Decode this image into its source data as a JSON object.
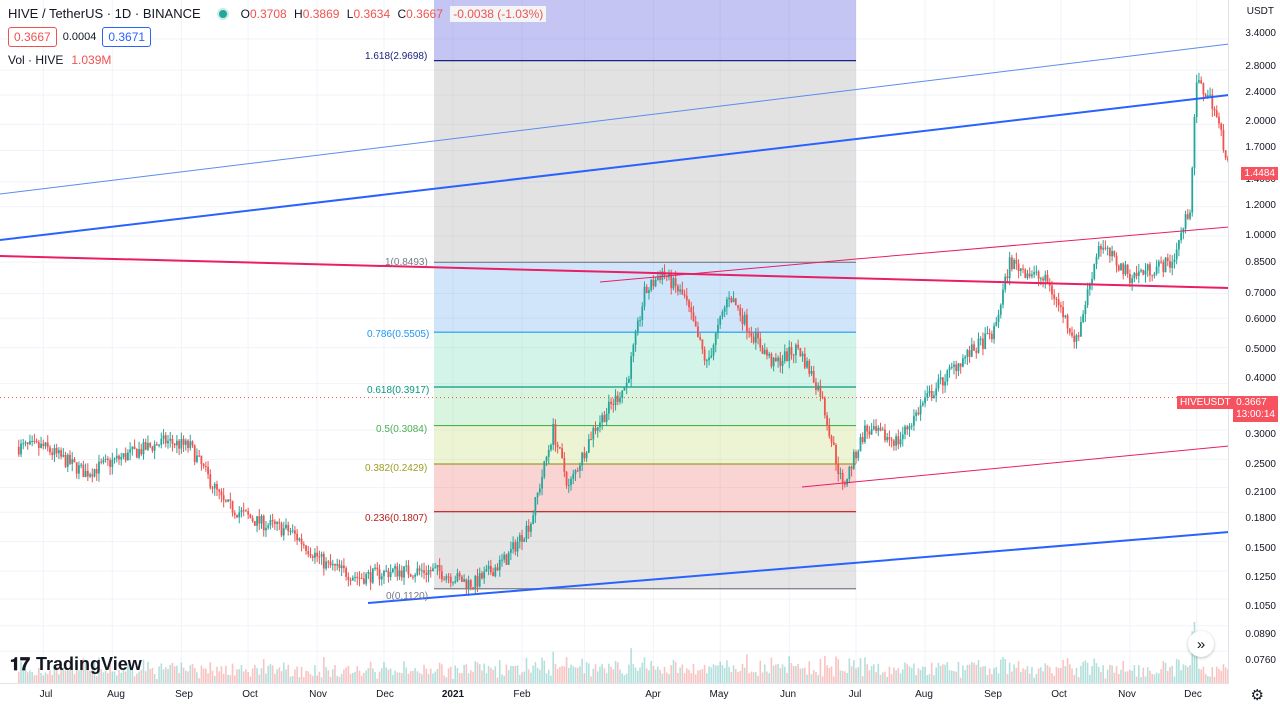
{
  "header": {
    "title": "HIVE / TetherUS · 1D · BINANCE",
    "ohlc": {
      "o_label": "O",
      "o": "0.3708",
      "h_label": "H",
      "h": "0.3869",
      "l_label": "L",
      "l": "0.3634",
      "c_label": "C",
      "c": "0.3667",
      "change": "-0.0038 (-1.03%)"
    },
    "bid": "0.3667",
    "spread": "0.0004",
    "ask": "0.3671",
    "volume_label": "Vol · HIVE",
    "volume_value": "1.039M"
  },
  "price_axis": {
    "currency": "USDT",
    "ticks": [
      "3.4000",
      "2.8000",
      "2.4000",
      "2.0000",
      "1.7000",
      "1.4000",
      "1.2000",
      "1.0000",
      "0.8500",
      "0.7000",
      "0.6000",
      "0.5000",
      "0.4000",
      "0.3000",
      "0.2500",
      "0.2100",
      "0.1800",
      "0.1500",
      "0.1250",
      "0.1050",
      "0.0890",
      "0.0760"
    ],
    "last_price_badge": "1.4484",
    "symbol_tag": "HIVEUSDT",
    "current_price_badge": "0.3667",
    "countdown": "13:00:14"
  },
  "time_axis": {
    "ticks": [
      "Jul",
      "Aug",
      "Sep",
      "Oct",
      "Nov",
      "Dec",
      "2021",
      "Feb",
      "Apr",
      "May",
      "Jun",
      "Jul",
      "Aug",
      "Sep",
      "Oct",
      "Nov",
      "Dec"
    ]
  },
  "fib_levels": [
    {
      "label": "1.618(2.9698)",
      "color": "#1a237e"
    },
    {
      "label": "1(0.8493)",
      "color": "#787b86"
    },
    {
      "label": "0.786(0.5505)",
      "color": "#2196f3"
    },
    {
      "label": "0.618(0.3917)",
      "color": "#089981"
    },
    {
      "label": "0.5(0.3084)",
      "color": "#4caf50"
    },
    {
      "label": "0.382(0.2429)",
      "color": "#9e9d24"
    },
    {
      "label": "0.236(0.1807)",
      "color": "#b71c1c"
    },
    {
      "label": "0(0.1120)",
      "color": "#787b86"
    }
  ],
  "branding": {
    "logo_text": "TradingView"
  },
  "colors": {
    "up": "#26a69a",
    "down": "#ef5350",
    "trend_blue": "#2962ff",
    "trend_red": "#e91e63"
  },
  "chart_data": {
    "type": "candlestick",
    "title": "HIVE / TetherUS · 1D · BINANCE",
    "y_scale": "log",
    "ylim": [
      0.07,
      3.6
    ],
    "x_range": [
      "2020-06-20",
      "2021-12-20"
    ],
    "series": [
      {
        "name": "HIVE / TetherUS",
        "closes_approx": [
          [
            "2020-07-01",
            0.27
          ],
          [
            "2020-07-20",
            0.23
          ],
          [
            "2020-08-10",
            0.26
          ],
          [
            "2020-08-25",
            0.28
          ],
          [
            "2020-09-05",
            0.27
          ],
          [
            "2020-09-20",
            0.19
          ],
          [
            "2020-10-05",
            0.17
          ],
          [
            "2020-10-20",
            0.16
          ],
          [
            "2020-11-05",
            0.13
          ],
          [
            "2020-11-20",
            0.12
          ],
          [
            "2020-12-05",
            0.125
          ],
          [
            "2020-12-25",
            0.125
          ],
          [
            "2021-01-10",
            0.115
          ],
          [
            "2021-01-25",
            0.135
          ],
          [
            "2021-02-05",
            0.17
          ],
          [
            "2021-02-15",
            0.3
          ],
          [
            "2021-02-22",
            0.21
          ],
          [
            "2021-03-05",
            0.3
          ],
          [
            "2021-03-20",
            0.4
          ],
          [
            "2021-03-28",
            0.7
          ],
          [
            "2021-04-05",
            0.8
          ],
          [
            "2021-04-15",
            0.68
          ],
          [
            "2021-04-25",
            0.45
          ],
          [
            "2021-05-05",
            0.7
          ],
          [
            "2021-05-15",
            0.55
          ],
          [
            "2021-05-25",
            0.45
          ],
          [
            "2021-06-05",
            0.5
          ],
          [
            "2021-06-15",
            0.38
          ],
          [
            "2021-06-25",
            0.21
          ],
          [
            "2021-07-05",
            0.3
          ],
          [
            "2021-07-20",
            0.28
          ],
          [
            "2021-08-01",
            0.36
          ],
          [
            "2021-08-15",
            0.45
          ],
          [
            "2021-09-01",
            0.55
          ],
          [
            "2021-09-08",
            0.85
          ],
          [
            "2021-09-25",
            0.75
          ],
          [
            "2021-10-08",
            0.52
          ],
          [
            "2021-10-18",
            0.95
          ],
          [
            "2021-11-01",
            0.78
          ],
          [
            "2021-11-20",
            0.85
          ],
          [
            "2021-11-28",
            1.2
          ],
          [
            "2021-12-01",
            2.6
          ],
          [
            "2021-12-08",
            2.3
          ],
          [
            "2021-12-15",
            1.6
          ],
          [
            "2021-12-20",
            1.45
          ]
        ]
      }
    ],
    "fibonacci": [
      {
        "ratio": 1.618,
        "price": 2.9698
      },
      {
        "ratio": 1,
        "price": 0.8493
      },
      {
        "ratio": 0.786,
        "price": 0.5505
      },
      {
        "ratio": 0.618,
        "price": 0.3917
      },
      {
        "ratio": 0.5,
        "price": 0.3084
      },
      {
        "ratio": 0.382,
        "price": 0.2429
      },
      {
        "ratio": 0.236,
        "price": 0.1807
      },
      {
        "ratio": 0,
        "price": 0.112
      }
    ]
  }
}
